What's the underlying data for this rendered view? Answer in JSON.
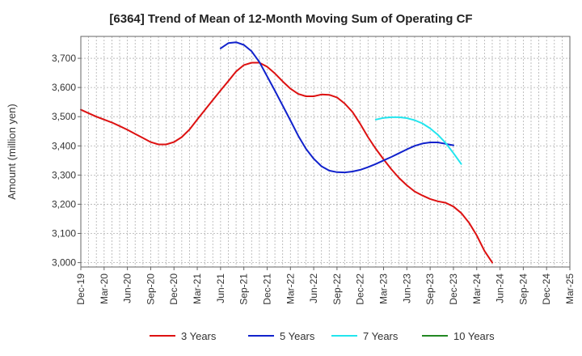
{
  "chart_data": {
    "type": "line",
    "title": "[6364]  Trend of Mean of 12-Month Moving Sum of Operating CF",
    "xlabel": "",
    "ylabel": "Amount (million yen)",
    "ylim": [
      2985,
      3775
    ],
    "yticks": [
      3000,
      3100,
      3200,
      3300,
      3400,
      3500,
      3600,
      3700
    ],
    "ytick_labels": [
      "3,000",
      "3,100",
      "3,200",
      "3,300",
      "3,400",
      "3,500",
      "3,600",
      "3,700"
    ],
    "x_range_months": [
      0,
      63
    ],
    "xticks": [
      {
        "m": 0,
        "label": "Dec-19"
      },
      {
        "m": 3,
        "label": "Mar-20"
      },
      {
        "m": 6,
        "label": "Jun-20"
      },
      {
        "m": 9,
        "label": "Sep-20"
      },
      {
        "m": 12,
        "label": "Dec-20"
      },
      {
        "m": 15,
        "label": "Mar-21"
      },
      {
        "m": 18,
        "label": "Jun-21"
      },
      {
        "m": 21,
        "label": "Sep-21"
      },
      {
        "m": 24,
        "label": "Dec-21"
      },
      {
        "m": 27,
        "label": "Mar-22"
      },
      {
        "m": 30,
        "label": "Jun-22"
      },
      {
        "m": 33,
        "label": "Sep-22"
      },
      {
        "m": 36,
        "label": "Dec-22"
      },
      {
        "m": 39,
        "label": "Mar-23"
      },
      {
        "m": 42,
        "label": "Jun-23"
      },
      {
        "m": 45,
        "label": "Sep-23"
      },
      {
        "m": 48,
        "label": "Dec-23"
      },
      {
        "m": 51,
        "label": "Mar-24"
      },
      {
        "m": 54,
        "label": "Jun-24"
      },
      {
        "m": 57,
        "label": "Sep-24"
      },
      {
        "m": 60,
        "label": "Dec-24"
      },
      {
        "m": 63,
        "label": "Mar-25"
      }
    ],
    "legend_position": "bottom",
    "series": [
      {
        "name": "3 Years",
        "color": "#dd1111",
        "points": [
          [
            0,
            3524
          ],
          [
            1,
            3512
          ],
          [
            2,
            3500
          ],
          [
            3,
            3490
          ],
          [
            4,
            3480
          ],
          [
            5,
            3468
          ],
          [
            6,
            3455
          ],
          [
            7,
            3441
          ],
          [
            8,
            3427
          ],
          [
            9,
            3413
          ],
          [
            10,
            3405
          ],
          [
            11,
            3405
          ],
          [
            12,
            3413
          ],
          [
            13,
            3430
          ],
          [
            14,
            3456
          ],
          [
            15,
            3490
          ],
          [
            16,
            3524
          ],
          [
            17,
            3557
          ],
          [
            18,
            3590
          ],
          [
            19,
            3622
          ],
          [
            20,
            3655
          ],
          [
            21,
            3677
          ],
          [
            22,
            3685
          ],
          [
            23,
            3685
          ],
          [
            24,
            3671
          ],
          [
            25,
            3648
          ],
          [
            26,
            3621
          ],
          [
            27,
            3596
          ],
          [
            28,
            3578
          ],
          [
            29,
            3570
          ],
          [
            30,
            3570
          ],
          [
            31,
            3576
          ],
          [
            32,
            3575
          ],
          [
            33,
            3566
          ],
          [
            34,
            3545
          ],
          [
            35,
            3516
          ],
          [
            36,
            3475
          ],
          [
            37,
            3430
          ],
          [
            38,
            3390
          ],
          [
            39,
            3354
          ],
          [
            40,
            3320
          ],
          [
            41,
            3290
          ],
          [
            42,
            3265
          ],
          [
            43,
            3244
          ],
          [
            44,
            3230
          ],
          [
            45,
            3218
          ],
          [
            46,
            3210
          ],
          [
            47,
            3205
          ],
          [
            48,
            3192
          ],
          [
            49,
            3170
          ],
          [
            50,
            3137
          ],
          [
            51,
            3093
          ],
          [
            52,
            3040
          ],
          [
            53,
            3000
          ]
        ]
      },
      {
        "name": "5 Years",
        "color": "#1122cc",
        "points": [
          [
            18,
            3734
          ],
          [
            19,
            3752
          ],
          [
            20,
            3755
          ],
          [
            21,
            3746
          ],
          [
            22,
            3724
          ],
          [
            23,
            3687
          ],
          [
            24,
            3638
          ],
          [
            25,
            3589
          ],
          [
            26,
            3538
          ],
          [
            27,
            3487
          ],
          [
            28,
            3435
          ],
          [
            29,
            3390
          ],
          [
            30,
            3356
          ],
          [
            31,
            3330
          ],
          [
            32,
            3315
          ],
          [
            33,
            3310
          ],
          [
            34,
            3309
          ],
          [
            35,
            3312
          ],
          [
            36,
            3318
          ],
          [
            37,
            3327
          ],
          [
            38,
            3338
          ],
          [
            39,
            3350
          ],
          [
            40,
            3362
          ],
          [
            41,
            3375
          ],
          [
            42,
            3388
          ],
          [
            43,
            3400
          ],
          [
            44,
            3408
          ],
          [
            45,
            3412
          ],
          [
            46,
            3412
          ],
          [
            47,
            3407
          ],
          [
            48,
            3402
          ]
        ]
      },
      {
        "name": "7 Years",
        "color": "#22e5ee",
        "points": [
          [
            38,
            3490
          ],
          [
            39,
            3496
          ],
          [
            40,
            3498
          ],
          [
            41,
            3498
          ],
          [
            42,
            3495
          ],
          [
            43,
            3488
          ],
          [
            44,
            3477
          ],
          [
            45,
            3460
          ],
          [
            46,
            3438
          ],
          [
            47,
            3410
          ],
          [
            48,
            3375
          ],
          [
            49,
            3338
          ]
        ]
      },
      {
        "name": "10 Years",
        "color": "#228822",
        "points": []
      }
    ]
  }
}
